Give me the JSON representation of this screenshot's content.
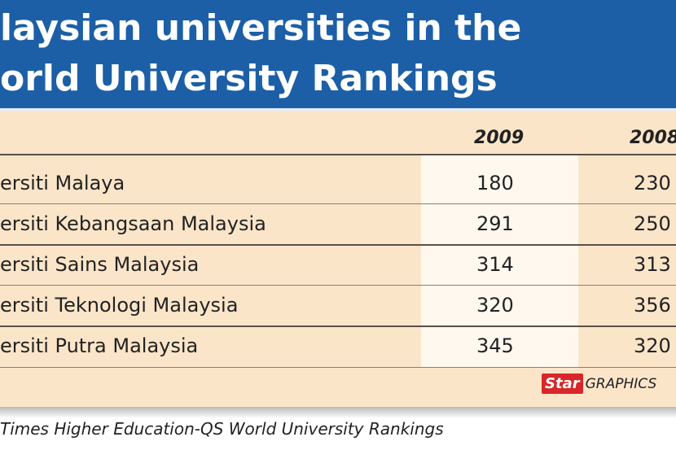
{
  "title": {
    "line1": "laysian universities in the",
    "line2": "orld University Rankings"
  },
  "chart_data": {
    "type": "table",
    "columns": [
      "",
      "2009",
      "2008"
    ],
    "rows": [
      {
        "name": "ersiti Malaya",
        "y2009": "180",
        "y2008": "230"
      },
      {
        "name": "ersiti Kebangsaan Malaysia",
        "y2009": "291",
        "y2008": "250"
      },
      {
        "name": "ersiti Sains Malaysia",
        "y2009": "314",
        "y2008": "313"
      },
      {
        "name": "ersiti Teknologi Malaysia",
        "y2009": "320",
        "y2008": "356"
      },
      {
        "name": "ersiti Putra Malaysia",
        "y2009": "345",
        "y2008": "320"
      }
    ]
  },
  "footer": {
    "logo": "Star",
    "credit": "GRAPHICS"
  },
  "source": "Times Higher Education-QS World University Rankings",
  "colors": {
    "title_bg": "#1c5fa6",
    "panel_bg": "#fbe5c9",
    "logo": "#d8262a"
  }
}
